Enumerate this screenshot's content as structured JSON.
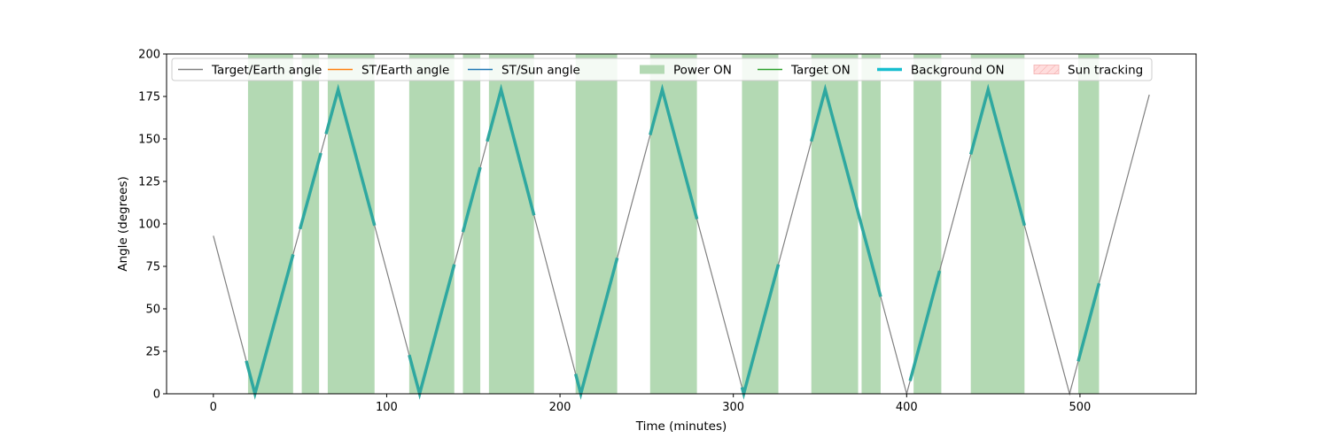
{
  "chart_data": {
    "type": "line",
    "title": "",
    "xlabel": "Time (minutes)",
    "ylabel": "Angle (degrees)",
    "xlim": [
      -27,
      567
    ],
    "ylim": [
      0,
      200
    ],
    "xticks": [
      0,
      100,
      200,
      300,
      400,
      500
    ],
    "yticks": [
      0,
      25,
      50,
      75,
      100,
      125,
      150,
      175,
      200
    ],
    "grid": false,
    "legend_position": "top",
    "legend": [
      {
        "label": "Target/Earth angle",
        "kind": "line",
        "color": "#808080"
      },
      {
        "label": "ST/Earth angle",
        "kind": "line",
        "color": "#ff7f0e"
      },
      {
        "label": "ST/Sun angle",
        "kind": "line",
        "color": "#1f77b4"
      },
      {
        "label": "Power ON",
        "kind": "patch",
        "color": "#b3d9b3"
      },
      {
        "label": "Target ON",
        "kind": "line",
        "color": "#2ca02c"
      },
      {
        "label": "Background ON",
        "kind": "thickline",
        "color": "#17becf"
      },
      {
        "label": "Sun tracking",
        "kind": "hatch",
        "color": "#ffdddd"
      }
    ],
    "series": [
      {
        "name": "Target/Earth angle",
        "color": "#808080",
        "x": [
          0,
          24,
          72,
          119,
          166,
          212,
          259,
          306,
          353,
          400,
          447,
          494,
          540
        ],
        "y": [
          93,
          0,
          179,
          0,
          179,
          0,
          179,
          0,
          179,
          0,
          179,
          0,
          176
        ]
      }
    ],
    "power_on_intervals": [
      [
        20,
        46
      ],
      [
        51,
        61
      ],
      [
        66,
        93
      ],
      [
        113,
        139
      ],
      [
        144,
        154
      ],
      [
        159,
        185
      ],
      [
        209,
        233
      ],
      [
        252,
        279
      ],
      [
        305,
        326
      ],
      [
        345,
        372
      ],
      [
        374,
        385
      ],
      [
        404,
        420
      ],
      [
        437,
        468
      ],
      [
        499,
        511
      ]
    ],
    "background_on_intervals": [
      [
        19,
        46
      ],
      [
        50,
        62
      ],
      [
        65,
        93
      ],
      [
        113,
        139
      ],
      [
        144,
        154
      ],
      [
        158,
        185
      ],
      [
        209,
        233
      ],
      [
        252,
        279
      ],
      [
        305,
        326
      ],
      [
        345,
        385
      ],
      [
        402,
        419
      ],
      [
        437,
        468
      ],
      [
        499,
        511
      ]
    ],
    "colors": {
      "power_on": "#b3d9b3",
      "background_on": "#2fa8a0",
      "target_earth": "#808080"
    }
  }
}
